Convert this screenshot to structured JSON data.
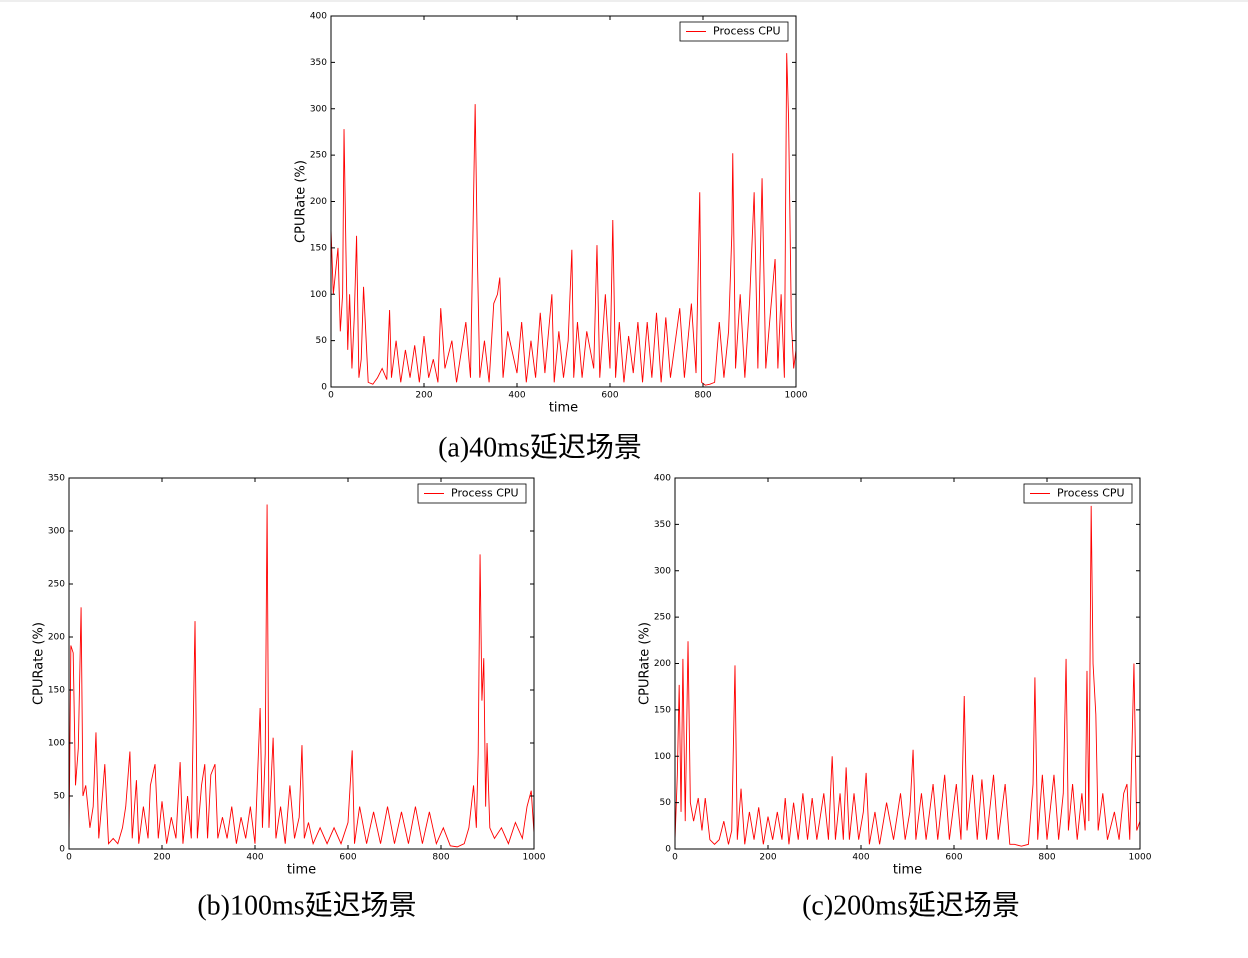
{
  "chart_data": [
    {
      "type": "line",
      "caption": "(a)40ms延迟场景",
      "xlabel": "time",
      "ylabel": "CPURate (%)",
      "legend": "upper right",
      "xlim": [
        0,
        1000
      ],
      "ylim": [
        0,
        400
      ],
      "xticks": [
        0,
        200,
        400,
        600,
        800,
        1000
      ],
      "yticks": [
        0,
        50,
        100,
        150,
        200,
        250,
        300,
        350,
        400
      ],
      "x": [
        0,
        5,
        10,
        15,
        20,
        25,
        28,
        32,
        36,
        40,
        45,
        50,
        55,
        60,
        65,
        70,
        80,
        90,
        100,
        110,
        120,
        126,
        130,
        140,
        150,
        160,
        170,
        180,
        190,
        200,
        210,
        220,
        230,
        236,
        245,
        260,
        270,
        290,
        300,
        310,
        315,
        320,
        330,
        340,
        350,
        358,
        363,
        370,
        380,
        400,
        410,
        420,
        430,
        440,
        450,
        460,
        475,
        480,
        490,
        500,
        510,
        518,
        522,
        530,
        540,
        550,
        565,
        572,
        578,
        590,
        600,
        606,
        612,
        620,
        630,
        640,
        650,
        660,
        670,
        680,
        690,
        700,
        710,
        720,
        730,
        750,
        760,
        775,
        785,
        793,
        797,
        805,
        815,
        825,
        835,
        845,
        855,
        862,
        864,
        870,
        880,
        890,
        900,
        910,
        918,
        927,
        935,
        945,
        955,
        961,
        968,
        975,
        980,
        984,
        990,
        995,
        1000
      ],
      "series": [
        {
          "name": "Process CPU",
          "color": "#ff0000",
          "values": [
            170,
            100,
            125,
            150,
            60,
            100,
            278,
            150,
            40,
            100,
            20,
            75,
            163,
            10,
            30,
            108,
            5,
            3,
            10,
            20,
            8,
            83,
            10,
            50,
            5,
            40,
            10,
            45,
            5,
            55,
            10,
            30,
            5,
            85,
            20,
            50,
            5,
            70,
            10,
            305,
            135,
            10,
            50,
            5,
            90,
            100,
            118,
            10,
            60,
            15,
            70,
            5,
            50,
            10,
            80,
            15,
            100,
            5,
            60,
            10,
            50,
            148,
            10,
            70,
            10,
            60,
            20,
            153,
            10,
            100,
            20,
            180,
            10,
            70,
            5,
            55,
            15,
            70,
            5,
            70,
            10,
            80,
            5,
            75,
            10,
            85,
            10,
            90,
            15,
            210,
            5,
            2,
            3,
            5,
            70,
            10,
            60,
            165,
            252,
            20,
            100,
            10,
            90,
            210,
            20,
            225,
            20,
            80,
            138,
            20,
            100,
            10,
            360,
            290,
            70,
            20,
            40
          ]
        }
      ]
    },
    {
      "type": "line",
      "caption": "(b)100ms延迟场景",
      "xlabel": "time",
      "ylabel": "CPURate (%)",
      "legend": "upper right",
      "xlim": [
        0,
        1000
      ],
      "ylim": [
        0,
        350
      ],
      "xticks": [
        0,
        200,
        400,
        600,
        800,
        1000
      ],
      "yticks": [
        0,
        50,
        100,
        150,
        200,
        250,
        300,
        350
      ],
      "x": [
        0,
        4,
        9,
        14,
        20,
        26,
        30,
        36,
        45,
        52,
        58,
        64,
        70,
        77,
        85,
        95,
        105,
        115,
        122,
        131,
        136,
        145,
        150,
        160,
        170,
        175,
        185,
        192,
        200,
        210,
        220,
        230,
        239,
        245,
        255,
        263,
        271,
        276,
        285,
        292,
        298,
        305,
        314,
        320,
        330,
        340,
        350,
        360,
        370,
        380,
        390,
        400,
        411,
        416,
        422,
        426,
        430,
        439,
        445,
        455,
        465,
        475,
        485,
        495,
        501,
        506,
        515,
        525,
        540,
        555,
        570,
        585,
        600,
        609,
        614,
        625,
        640,
        655,
        670,
        685,
        700,
        715,
        730,
        745,
        760,
        775,
        790,
        805,
        820,
        835,
        850,
        860,
        870,
        876,
        880,
        884,
        888,
        892,
        896,
        899,
        905,
        915,
        930,
        945,
        960,
        975,
        985,
        994,
        1000
      ],
      "series": [
        {
          "name": "Process CPU",
          "color": "#ff0000",
          "values": [
            10,
            192,
            185,
            60,
            95,
            228,
            50,
            60,
            20,
            40,
            110,
            10,
            40,
            80,
            5,
            10,
            5,
            20,
            40,
            92,
            10,
            65,
            5,
            40,
            10,
            60,
            80,
            10,
            45,
            5,
            30,
            10,
            82,
            5,
            50,
            10,
            215,
            10,
            60,
            80,
            10,
            70,
            80,
            10,
            30,
            10,
            40,
            5,
            30,
            10,
            40,
            5,
            133,
            20,
            90,
            325,
            20,
            105,
            10,
            40,
            5,
            60,
            10,
            30,
            98,
            10,
            25,
            5,
            20,
            5,
            20,
            5,
            25,
            93,
            5,
            40,
            5,
            35,
            5,
            40,
            5,
            35,
            5,
            40,
            5,
            35,
            5,
            20,
            3,
            2,
            5,
            20,
            60,
            20,
            90,
            278,
            140,
            180,
            40,
            100,
            20,
            10,
            20,
            5,
            25,
            10,
            40,
            55,
            15
          ]
        }
      ]
    },
    {
      "type": "line",
      "caption": "(c)200ms延迟场景",
      "xlabel": "time",
      "ylabel": "CPURate (%)",
      "legend": "upper right",
      "xlim": [
        0,
        1000
      ],
      "ylim": [
        0,
        400
      ],
      "xticks": [
        0,
        200,
        400,
        600,
        800,
        1000
      ],
      "yticks": [
        0,
        50,
        100,
        150,
        200,
        250,
        300,
        350,
        400
      ],
      "x": [
        0,
        5,
        9,
        13,
        17,
        22,
        28,
        33,
        40,
        50,
        58,
        65,
        75,
        85,
        95,
        105,
        115,
        122,
        129,
        134,
        142,
        150,
        160,
        170,
        180,
        190,
        200,
        210,
        220,
        230,
        237,
        245,
        255,
        265,
        275,
        285,
        295,
        305,
        320,
        330,
        338,
        345,
        355,
        362,
        368,
        375,
        385,
        395,
        405,
        411,
        418,
        430,
        440,
        455,
        470,
        485,
        495,
        505,
        512,
        518,
        530,
        540,
        555,
        565,
        580,
        590,
        605,
        615,
        622,
        628,
        640,
        650,
        660,
        670,
        685,
        695,
        710,
        720,
        730,
        745,
        760,
        770,
        774,
        780,
        790,
        800,
        815,
        825,
        835,
        841,
        846,
        855,
        865,
        875,
        882,
        886,
        890,
        895,
        899,
        905,
        910,
        920,
        930,
        945,
        955,
        965,
        972,
        978,
        987,
        993,
        1000
      ],
      "series": [
        {
          "name": "Process CPU",
          "color": "#ff0000",
          "values": [
            10,
            80,
            177,
            40,
            205,
            30,
            224,
            50,
            30,
            55,
            20,
            55,
            10,
            5,
            10,
            30,
            5,
            20,
            198,
            10,
            65,
            5,
            40,
            10,
            45,
            5,
            35,
            10,
            40,
            10,
            55,
            5,
            50,
            10,
            60,
            10,
            55,
            10,
            60,
            10,
            100,
            10,
            60,
            10,
            88,
            10,
            60,
            10,
            40,
            82,
            5,
            40,
            5,
            50,
            10,
            60,
            10,
            40,
            107,
            10,
            60,
            10,
            70,
            10,
            80,
            10,
            70,
            10,
            165,
            20,
            80,
            10,
            75,
            10,
            80,
            10,
            70,
            5,
            5,
            3,
            5,
            70,
            185,
            10,
            80,
            10,
            80,
            10,
            60,
            205,
            20,
            70,
            10,
            60,
            20,
            192,
            30,
            370,
            200,
            145,
            20,
            60,
            10,
            40,
            10,
            60,
            70,
            10,
            200,
            20,
            30
          ]
        }
      ]
    }
  ]
}
